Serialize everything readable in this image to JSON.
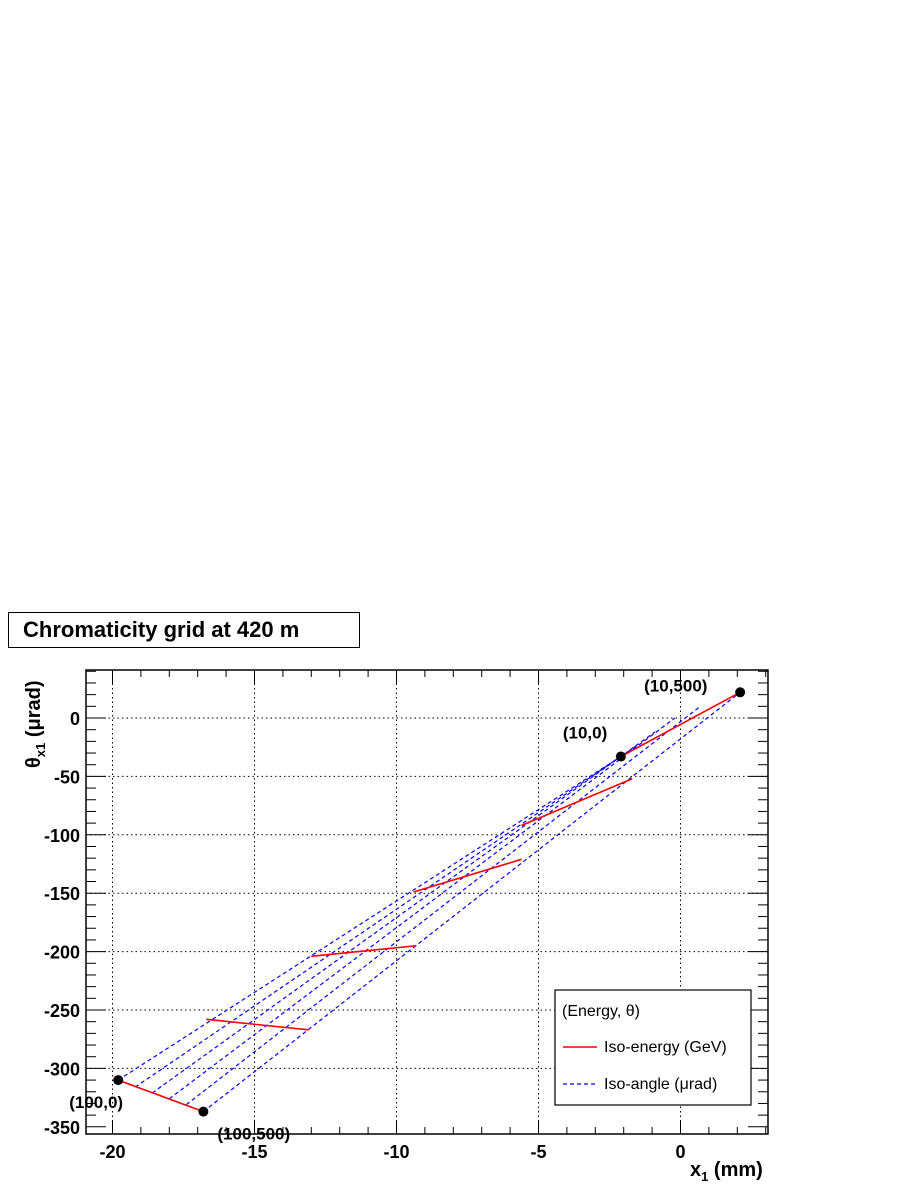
{
  "chart_data": {
    "type": "line",
    "title": "Chromaticity grid at 420 m",
    "xlabel_main": "x",
    "xlabel_sub": "1",
    "xlabel_unit": " (mm)",
    "ylabel_main": "θ",
    "ylabel_sub": "x1",
    "ylabel_unit": " (μrad)",
    "xlim": [
      -21,
      3.1
    ],
    "ylim": [
      -352,
      41
    ],
    "xticks": [
      -20,
      -15,
      -10,
      -5,
      0
    ],
    "xtick_labels": [
      "-20",
      "-15",
      "-10",
      "-5",
      "0"
    ],
    "yticks": [
      0,
      -50,
      -100,
      -150,
      -200,
      -250,
      -300,
      -350
    ],
    "ytick_labels": [
      "0",
      "-50",
      "-100",
      "-150",
      "-200",
      "-250",
      "-300",
      "-350"
    ],
    "grid": true,
    "legend_position": "bottom-right",
    "iso_energy_color": "#ff0000",
    "iso_angle_color": "#0000ff",
    "iso_energy_lines": [
      {
        "x": [
          -2.1,
          2.1
        ],
        "y": [
          -33,
          22
        ]
      },
      {
        "x": [
          -5.6,
          -1.7
        ],
        "y": [
          -92,
          -52
        ]
      },
      {
        "x": [
          -9.4,
          -5.6
        ],
        "y": [
          -149,
          -121
        ]
      },
      {
        "x": [
          -13.0,
          -9.3
        ],
        "y": [
          -204,
          -195
        ]
      },
      {
        "x": [
          -16.7,
          -13.1
        ],
        "y": [
          -258,
          -267
        ]
      },
      {
        "x": [
          -19.8,
          -16.8
        ],
        "y": [
          -310,
          -337
        ]
      }
    ],
    "iso_angle_lines": [
      {
        "x": [
          -19.8,
          -2.1
        ],
        "y": [
          -310,
          -33
        ]
      },
      {
        "x": [
          -19.2,
          -1.5
        ],
        "y": [
          -316,
          -23
        ]
      },
      {
        "x": [
          -18.6,
          -0.9
        ],
        "y": [
          -321,
          -12
        ]
      },
      {
        "x": [
          -18.0,
          -0.2
        ],
        "y": [
          -326,
          0
        ]
      },
      {
        "x": [
          -17.4,
          0.7
        ],
        "y": [
          -331,
          10
        ]
      },
      {
        "x": [
          -16.8,
          2.1
        ],
        "y": [
          -337,
          22
        ]
      }
    ],
    "points": [
      {
        "x": -19.8,
        "y": -310,
        "label": "(100,0)"
      },
      {
        "x": -16.8,
        "y": -337,
        "label": "(100,500)"
      },
      {
        "x": -2.1,
        "y": -33,
        "label": "(10,0)"
      },
      {
        "x": 2.1,
        "y": 22,
        "label": "(10,500)"
      }
    ],
    "legend": {
      "header": "(Energy, θ)",
      "entries": [
        "Iso-energy (GeV)",
        "Iso-angle (μrad)"
      ]
    }
  }
}
